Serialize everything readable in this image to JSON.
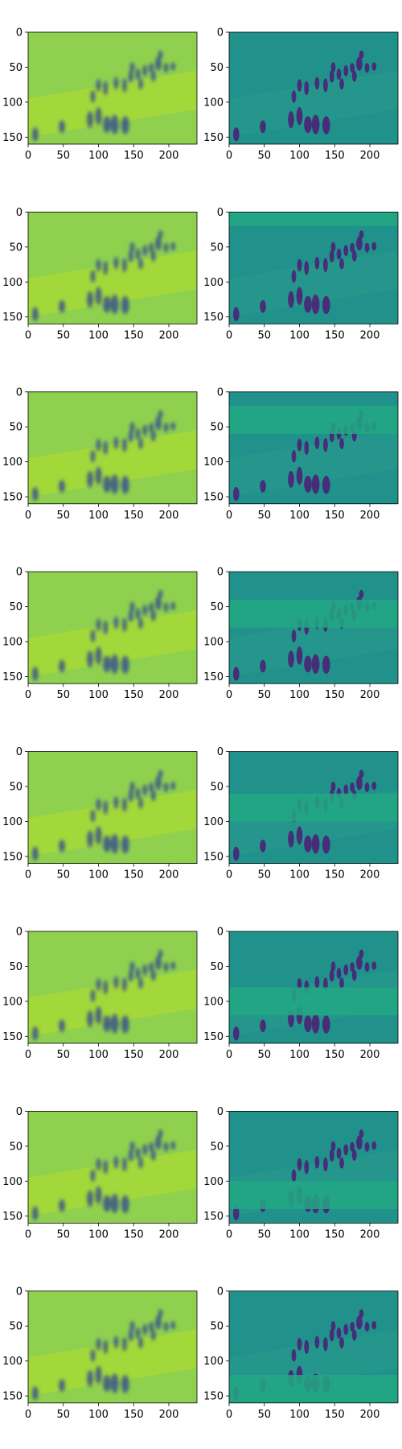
{
  "figure": {
    "rows": 8,
    "cols": 2
  },
  "chart_data": {
    "type": "heatmap",
    "colormap": "viridis",
    "background_color": "#ffffff",
    "title": "",
    "xlabel": "",
    "ylabel": "",
    "image_extent": {
      "width": 240,
      "height": 160
    },
    "xlim": [
      0,
      240
    ],
    "ylim": [
      160,
      0
    ],
    "x_ticks": [
      0,
      50,
      100,
      150,
      200
    ],
    "y_ticks": [
      0,
      50,
      100,
      150
    ],
    "x_tick_labels": [
      "0",
      "50",
      "100",
      "150",
      "200"
    ],
    "y_tick_labels": [
      "0",
      "50",
      "100",
      "150"
    ],
    "grid": false,
    "legend": "none",
    "panel_styles": {
      "left": {
        "description": "blurred reconstruction",
        "bg": "#8fd14f",
        "blob": "#3b528b"
      },
      "right": {
        "description": "difference map",
        "bg": "#21918c",
        "blob": "#482878"
      }
    },
    "rows": [
      {
        "left": "blurred",
        "right": "difference",
        "masked_band_y": null
      },
      {
        "left": "blurred",
        "right": "difference",
        "masked_band_y": [
          0,
          20
        ]
      },
      {
        "left": "blurred",
        "right": "difference",
        "masked_band_y": [
          20,
          60
        ]
      },
      {
        "left": "blurred",
        "right": "difference",
        "masked_band_y": [
          40,
          80
        ]
      },
      {
        "left": "blurred",
        "right": "difference",
        "masked_band_y": [
          60,
          100
        ]
      },
      {
        "left": "blurred",
        "right": "difference",
        "masked_band_y": [
          80,
          120
        ]
      },
      {
        "left": "blurred",
        "right": "difference",
        "masked_band_y": [
          100,
          140
        ]
      },
      {
        "left": "blurred",
        "right": "difference",
        "masked_band_y": [
          120,
          160
        ]
      }
    ]
  }
}
